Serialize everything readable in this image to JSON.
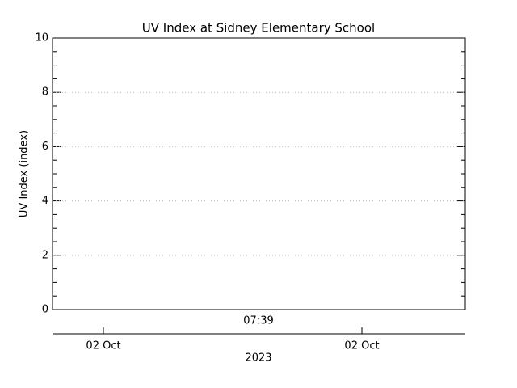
{
  "chart_data": {
    "type": "line",
    "title": "UV Index at Sidney Elementary School",
    "y_label": "UV Index (index)",
    "ylim": [
      0,
      10
    ],
    "yticks": [
      0,
      2,
      4,
      6,
      8,
      10
    ],
    "grid": true,
    "time_label": "07:39",
    "date_ticks": [
      "02 Oct",
      "02 Oct"
    ],
    "year_label": "2023",
    "color": "#000000"
  }
}
